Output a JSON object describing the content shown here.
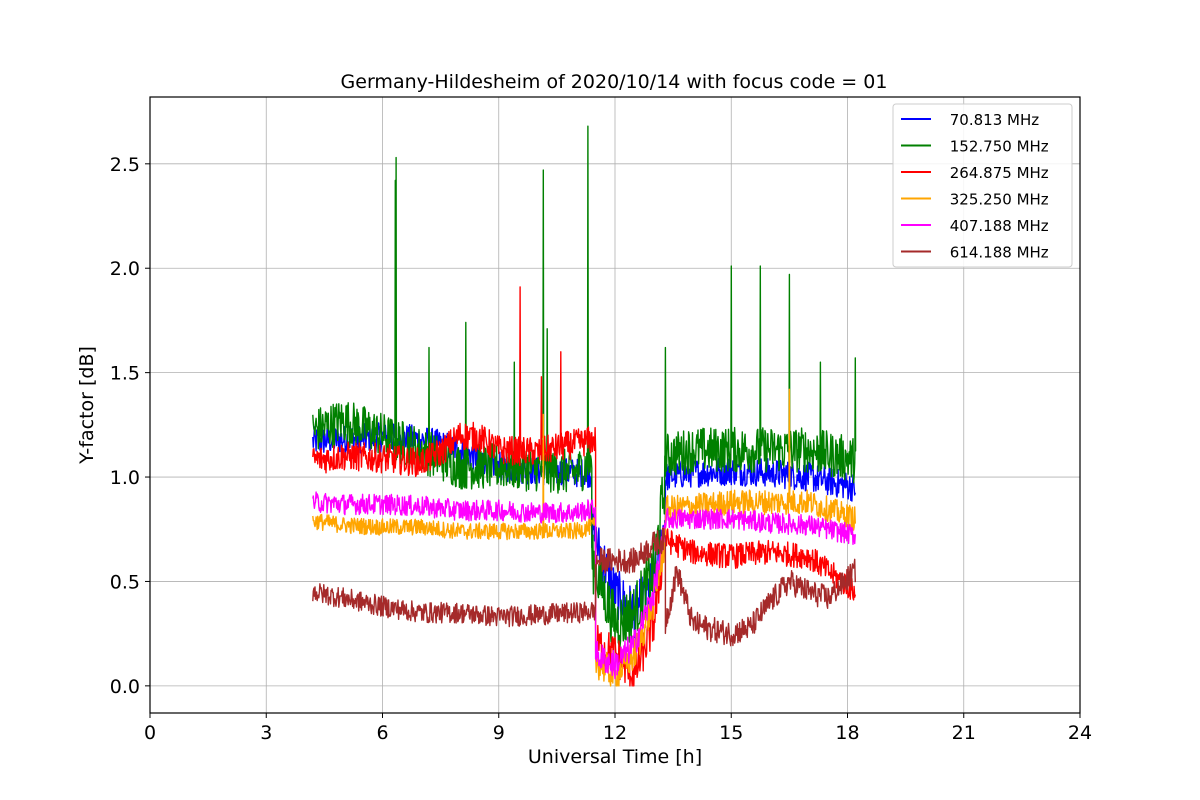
{
  "chart_data": {
    "type": "line",
    "title": "Germany-Hildesheim of 2020/10/14 with focus code = 01",
    "xlabel": "Universal Time [h]",
    "ylabel": "Y-factor [dB]",
    "xlim": [
      0,
      24
    ],
    "ylim": [
      -0.13,
      2.82
    ],
    "xticks": [
      0,
      3,
      6,
      9,
      12,
      15,
      18,
      21,
      24
    ],
    "xtick_labels": [
      "0",
      "3",
      "6",
      "9",
      "12",
      "15",
      "18",
      "21",
      "24"
    ],
    "yticks": [
      0.0,
      0.5,
      1.0,
      1.5,
      2.0,
      2.5
    ],
    "ytick_labels": [
      "0.0",
      "0.5",
      "1.0",
      "1.5",
      "2.0",
      "2.5"
    ],
    "grid": true,
    "legend_position": "top-right",
    "series": [
      {
        "name": " 70.813 MHz",
        "color": "#0000ff",
        "segments": [
          {
            "x": [
              4.2,
              5.0,
              6.0,
              7.0,
              8.0,
              9.0,
              10.0,
              11.0,
              11.4
            ],
            "y": [
              1.17,
              1.18,
              1.19,
              1.18,
              1.13,
              1.05,
              1.03,
              1.02,
              1.02
            ],
            "noise": 0.07
          },
          {
            "x": [
              11.4,
              12.0,
              12.5,
              13.0,
              13.3
            ],
            "y": [
              0.75,
              0.45,
              0.35,
              0.5,
              0.8
            ],
            "noise": 0.12
          },
          {
            "x": [
              13.3,
              14.0,
              15.0,
              16.0,
              17.0,
              18.2
            ],
            "y": [
              1.0,
              1.02,
              1.03,
              1.02,
              1.0,
              0.95
            ],
            "noise": 0.07
          }
        ],
        "spikes": []
      },
      {
        "name": " 152.750 MHz",
        "color": "#008000",
        "segments": [
          {
            "x": [
              4.2,
              5.0,
              6.0,
              7.0,
              8.0,
              9.0,
              10.0,
              11.0,
              11.4
            ],
            "y": [
              1.22,
              1.27,
              1.2,
              1.13,
              1.05,
              1.05,
              1.04,
              1.02,
              1.08
            ],
            "noise": 0.11
          },
          {
            "x": [
              11.4,
              12.0,
              12.5,
              13.0,
              13.3
            ],
            "y": [
              0.6,
              0.3,
              0.35,
              0.55,
              1.0
            ],
            "noise": 0.14
          },
          {
            "x": [
              13.3,
              14.0,
              15.0,
              16.0,
              17.0,
              18.2
            ],
            "y": [
              1.1,
              1.13,
              1.13,
              1.13,
              1.13,
              1.08
            ],
            "noise": 0.11
          }
        ],
        "spikes": [
          [
            6.35,
            2.53
          ],
          [
            6.33,
            2.42
          ],
          [
            7.2,
            1.62
          ],
          [
            8.15,
            1.74
          ],
          [
            9.4,
            1.55
          ],
          [
            10.15,
            2.47
          ],
          [
            10.25,
            1.71
          ],
          [
            11.3,
            2.68
          ],
          [
            13.3,
            1.62
          ],
          [
            15.0,
            2.01
          ],
          [
            15.75,
            2.01
          ],
          [
            16.5,
            1.97
          ],
          [
            17.3,
            1.55
          ],
          [
            18.2,
            1.57
          ]
        ]
      },
      {
        "name": " 264.875 MHz",
        "color": "#ff0000",
        "segments": [
          {
            "x": [
              4.2,
              5.0,
              6.0,
              7.0,
              7.5,
              8.0,
              8.5,
              9.0,
              10.0,
              11.0,
              11.5
            ],
            "y": [
              1.08,
              1.1,
              1.09,
              1.07,
              1.12,
              1.2,
              1.19,
              1.13,
              1.12,
              1.16,
              1.18
            ],
            "noise": 0.07
          },
          {
            "x": [
              11.5,
              12.0,
              12.5,
              13.0,
              13.3
            ],
            "y": [
              0.2,
              0.15,
              0.05,
              0.3,
              0.7
            ],
            "noise": 0.1
          },
          {
            "x": [
              13.3,
              14.0,
              15.0,
              16.0,
              17.0,
              18.2
            ],
            "y": [
              0.7,
              0.64,
              0.62,
              0.64,
              0.62,
              0.45
            ],
            "noise": 0.06
          }
        ],
        "spikes": [
          [
            9.55,
            1.91
          ],
          [
            10.6,
            1.6
          ],
          [
            10.1,
            1.48
          ]
        ]
      },
      {
        "name": " 325.250 MHz",
        "color": "#ffa500",
        "segments": [
          {
            "x": [
              4.2,
              5.0,
              6.0,
              7.0,
              8.0,
              9.0,
              10.0,
              11.0,
              11.5
            ],
            "y": [
              0.79,
              0.77,
              0.76,
              0.76,
              0.74,
              0.74,
              0.74,
              0.74,
              0.77
            ],
            "noise": 0.04
          },
          {
            "x": [
              11.5,
              12.0,
              12.5,
              13.0,
              13.3
            ],
            "y": [
              0.12,
              0.05,
              0.15,
              0.4,
              0.7
            ],
            "noise": 0.08
          },
          {
            "x": [
              13.3,
              14.0,
              15.0,
              16.0,
              17.0,
              18.2
            ],
            "y": [
              0.85,
              0.86,
              0.88,
              0.88,
              0.88,
              0.8
            ],
            "noise": 0.06
          }
        ],
        "spikes": [
          [
            16.5,
            1.42
          ],
          [
            10.15,
            1.3
          ]
        ]
      },
      {
        "name": " 407.188 MHz",
        "color": "#ff00ff",
        "segments": [
          {
            "x": [
              4.2,
              5.0,
              6.0,
              7.0,
              8.0,
              9.0,
              10.0,
              11.0,
              11.5
            ],
            "y": [
              0.88,
              0.87,
              0.87,
              0.86,
              0.84,
              0.84,
              0.83,
              0.83,
              0.85
            ],
            "noise": 0.05
          },
          {
            "x": [
              11.5,
              12.0,
              12.5,
              13.0,
              13.3
            ],
            "y": [
              0.15,
              0.1,
              0.2,
              0.45,
              0.75
            ],
            "noise": 0.07
          },
          {
            "x": [
              13.3,
              14.0,
              15.0,
              16.0,
              17.0,
              18.2
            ],
            "y": [
              0.8,
              0.8,
              0.8,
              0.78,
              0.77,
              0.72
            ],
            "noise": 0.05
          }
        ],
        "spikes": []
      },
      {
        "name": " 614.188 MHz",
        "color": "#a52a2a",
        "segments": [
          {
            "x": [
              4.2,
              5.0,
              6.0,
              7.0,
              8.0,
              9.0,
              10.0,
              11.0,
              11.5
            ],
            "y": [
              0.45,
              0.42,
              0.38,
              0.35,
              0.35,
              0.33,
              0.34,
              0.35,
              0.36
            ],
            "noise": 0.05
          },
          {
            "x": [
              11.5,
              12.0,
              12.5,
              13.0,
              13.3
            ],
            "y": [
              0.6,
              0.6,
              0.6,
              0.68,
              0.7
            ],
            "noise": 0.06
          },
          {
            "x": [
              13.3,
              13.6,
              14.0,
              14.5,
              15.0,
              15.5,
              16.0,
              16.5,
              17.0,
              17.5,
              18.2
            ],
            "y": [
              0.3,
              0.55,
              0.3,
              0.27,
              0.25,
              0.28,
              0.4,
              0.5,
              0.45,
              0.42,
              0.55
            ],
            "noise": 0.06
          }
        ],
        "spikes": []
      }
    ]
  }
}
